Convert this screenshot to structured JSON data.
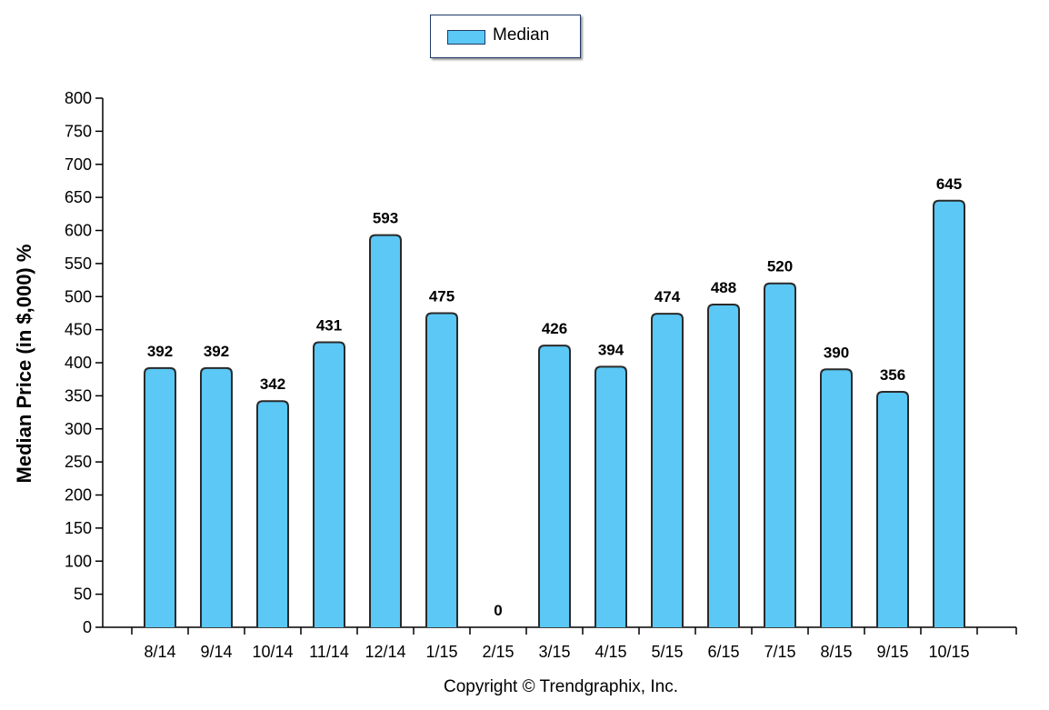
{
  "legend": {
    "label": "Median",
    "swatch_color": "#5bc8f5"
  },
  "copyright": "Copyright © Trendgraphix, Inc.",
  "colors": {
    "bar_fill": "#5bc8f5",
    "bar_stroke": "#2a2a2a",
    "axis": "#000000"
  },
  "chart_data": {
    "type": "bar",
    "title": "",
    "xlabel": "",
    "ylabel": "Median Price (in $,000) %",
    "ylim": [
      0,
      800
    ],
    "y_ticks": [
      0,
      50,
      100,
      150,
      200,
      250,
      300,
      350,
      400,
      450,
      500,
      550,
      600,
      650,
      700,
      750,
      800
    ],
    "categories": [
      "8/14",
      "9/14",
      "10/14",
      "11/14",
      "12/14",
      "1/15",
      "2/15",
      "3/15",
      "4/15",
      "5/15",
      "6/15",
      "7/15",
      "8/15",
      "9/15",
      "10/15"
    ],
    "series": [
      {
        "name": "Median",
        "values": [
          392,
          392,
          342,
          431,
          593,
          475,
          0,
          426,
          394,
          474,
          488,
          520,
          390,
          356,
          645
        ]
      }
    ],
    "data_labels": true,
    "grid": false,
    "legend_position": "top-center"
  }
}
